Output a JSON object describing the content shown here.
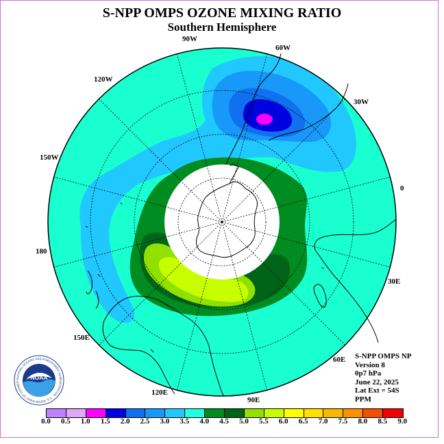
{
  "header": {
    "title": "S-NPP OMPS OZONE MIXING RATIO",
    "subtitle": "Southern Hemisphere"
  },
  "map": {
    "projection": "south polar stereographic",
    "lon_labels": [
      "90W",
      "60W",
      "30W",
      "0",
      "30E",
      "60E",
      "90E",
      "120E",
      "150E",
      "180",
      "150W",
      "120W"
    ],
    "colors": {
      "background_field": "#19ffd0",
      "land": "none",
      "coastline": "#000000",
      "no_data_cap": "#ffffff"
    }
  },
  "info": {
    "line1": "S-NPP OMPS NP",
    "line2": "Version 8",
    "line3": "0p7 hPa",
    "line4": "June 22, 2025",
    "line5": "Lat Ext = 54S",
    "line6": "PPM"
  },
  "legend": {
    "labels": [
      "0.0",
      "0.5",
      "1.0",
      "1.5",
      "2.0",
      "2.5",
      "3.0",
      "3.5",
      "4.0",
      "4.5",
      "5.0",
      "5.5",
      "6.0",
      "6.5",
      "7.0",
      "7.5",
      "8.0",
      "8.5",
      "9.0"
    ],
    "colors": [
      "#c080ff",
      "#e0a8f8",
      "#ff00ff",
      "#0000e0",
      "#1070f0",
      "#1898f8",
      "#20c8ff",
      "#20ffe0",
      "#008c20",
      "#006418",
      "#90e000",
      "#c8ff00",
      "#ffff00",
      "#ffe000",
      "#f8b800",
      "#f89000",
      "#f05000",
      "#f00000",
      "#906040"
    ]
  },
  "logo": {
    "text": "NOAA",
    "ring_text": "NATIONAL OCEANIC AND ATMOSPHERIC ADMINISTRATION · U.S. DEPARTMENT OF COMMERCE"
  }
}
